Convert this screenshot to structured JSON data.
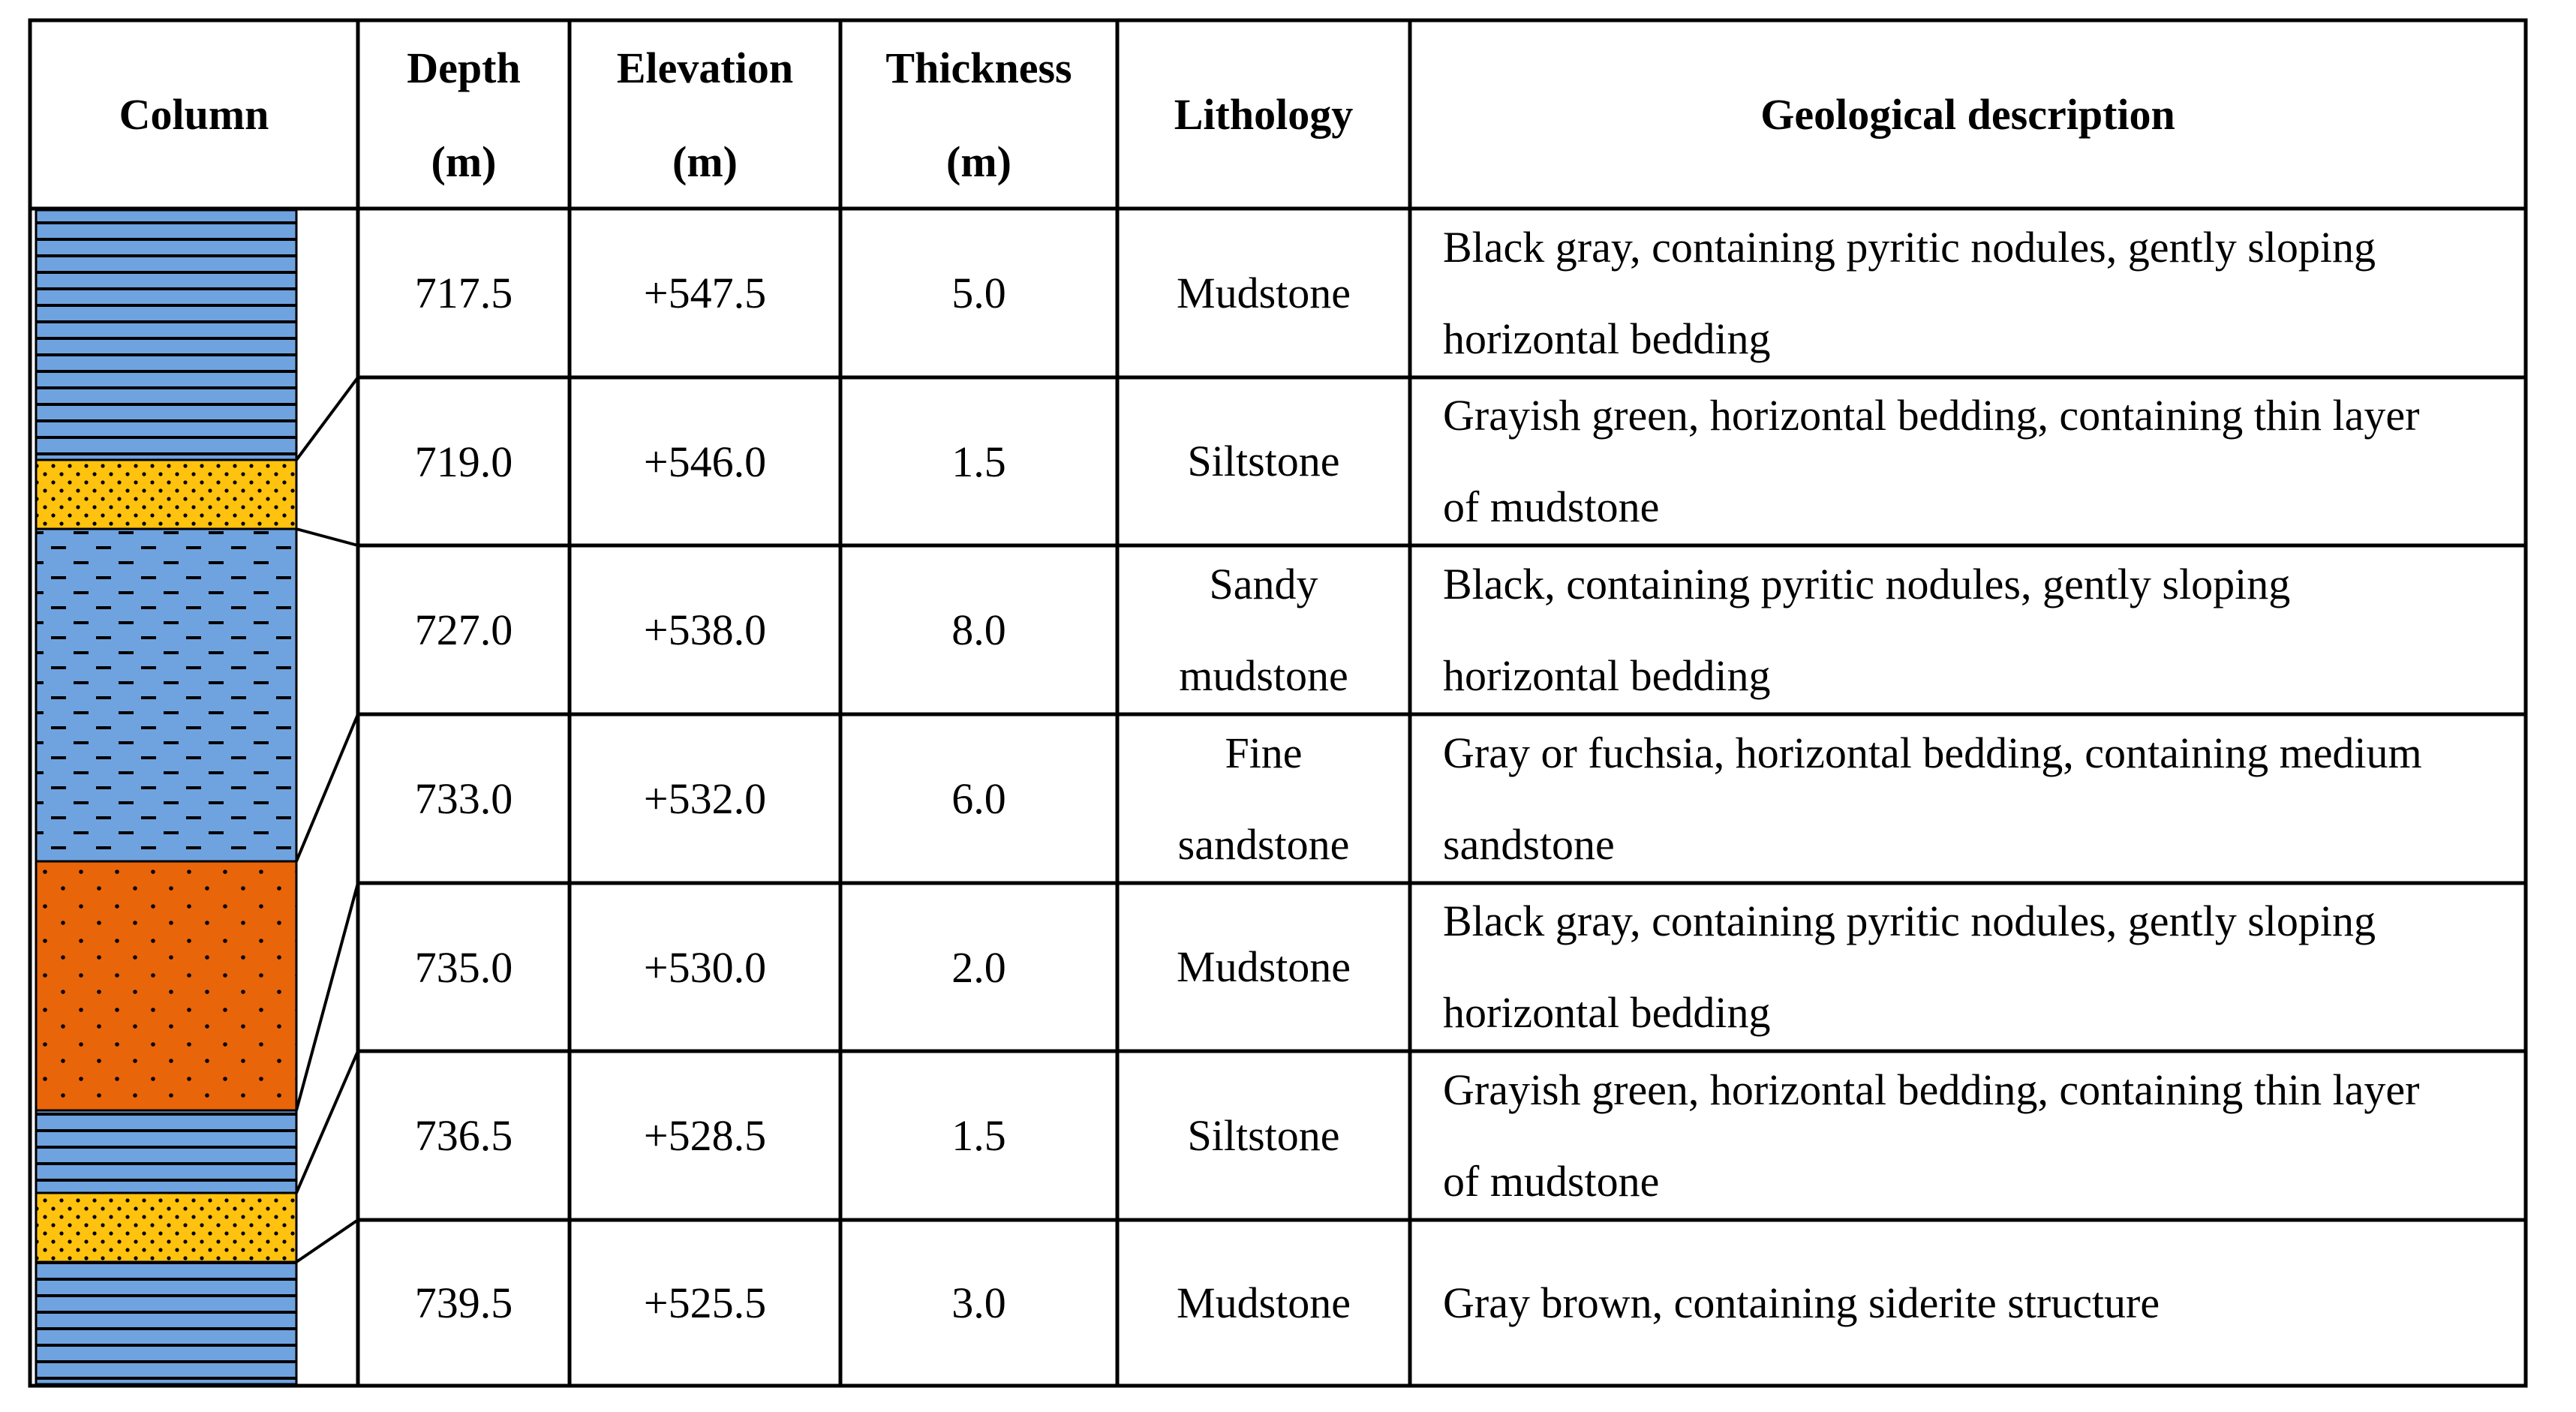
{
  "table": {
    "headers": {
      "column": "Column",
      "depth": [
        "Depth",
        "(m)"
      ],
      "elevation": [
        "Elevation",
        "(m)"
      ],
      "thickness": [
        "Thickness",
        "(m)"
      ],
      "lithology": "Lithology",
      "description": "Geological description"
    },
    "rows": [
      {
        "depth": "717.5",
        "elevation": "+547.5",
        "thickness": "5.0",
        "lithology": [
          "Mudstone"
        ],
        "description": [
          "Black gray, containing pyritic nodules, gently sloping",
          "horizontal bedding"
        ]
      },
      {
        "depth": "719.0",
        "elevation": "+546.0",
        "thickness": "1.5",
        "lithology": [
          "Siltstone"
        ],
        "description": [
          "Grayish green, horizontal bedding, containing thin layer",
          "of mudstone"
        ]
      },
      {
        "depth": "727.0",
        "elevation": "+538.0",
        "thickness": "8.0",
        "lithology": [
          "Sandy",
          "mudstone"
        ],
        "description": [
          "Black, containing pyritic nodules, gently sloping",
          "horizontal bedding"
        ]
      },
      {
        "depth": "733.0",
        "elevation": "+532.0",
        "thickness": "6.0",
        "lithology": [
          "Fine",
          "sandstone"
        ],
        "description": [
          "Gray or fuchsia, horizontal bedding, containing medium",
          "sandstone"
        ]
      },
      {
        "depth": "735.0",
        "elevation": "+530.0",
        "thickness": "2.0",
        "lithology": [
          "Mudstone"
        ],
        "description": [
          "Black gray, containing pyritic nodules, gently sloping",
          "horizontal bedding"
        ]
      },
      {
        "depth": "736.5",
        "elevation": "+528.5",
        "thickness": "1.5",
        "lithology": [
          "Siltstone"
        ],
        "description": [
          "Grayish green, horizontal bedding, containing thin layer",
          "of mudstone"
        ]
      },
      {
        "depth": "739.5",
        "elevation": "+525.5",
        "thickness": "3.0",
        "lithology": [
          "Mudstone"
        ],
        "description": [
          "Gray brown, containing siderite structure"
        ]
      }
    ]
  },
  "strata_column": [
    {
      "pattern": "mudstone",
      "color": "#6fa3df"
    },
    {
      "pattern": "siltstone",
      "color": "#ffc20e"
    },
    {
      "pattern": "sandy-mudstone",
      "color": "#6fa3df"
    },
    {
      "pattern": "fine-sandstone",
      "color": "#e8650a"
    },
    {
      "pattern": "mudstone",
      "color": "#6fa3df"
    },
    {
      "pattern": "siltstone",
      "color": "#ffc20e"
    },
    {
      "pattern": "mudstone",
      "color": "#6fa3df"
    }
  ]
}
